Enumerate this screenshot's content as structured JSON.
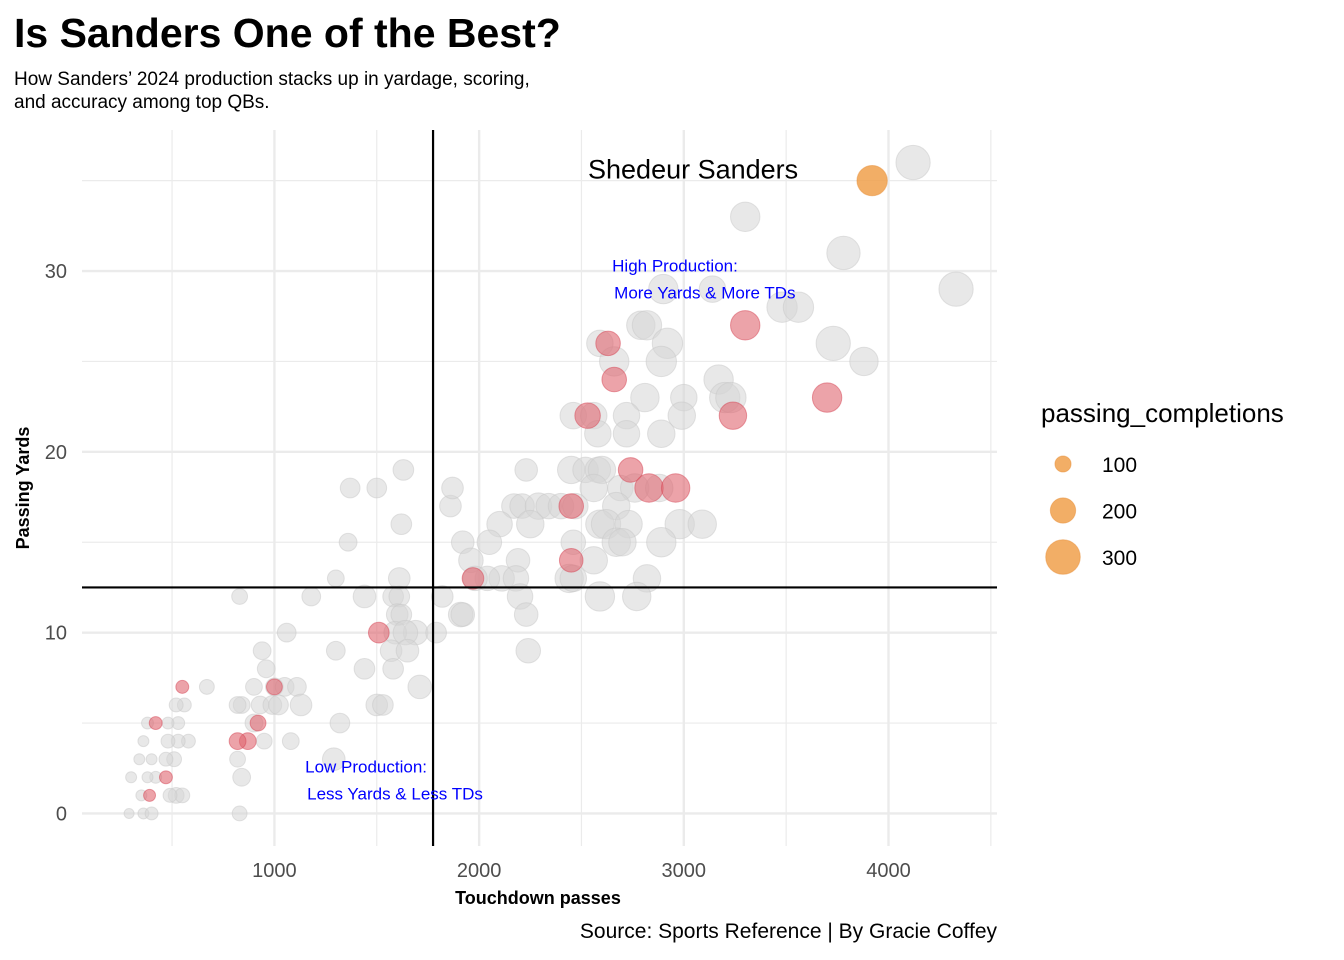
{
  "title": "Is Sanders One of the Best?",
  "subtitle": "How Sanders’ 2024 production stacks up in yardage, scoring, and accuracy among top QBs.",
  "caption": "Source: Sports Reference | By Gracie Coffey",
  "colors": {
    "other": "#d6d6d6",
    "highlight": "#e06670",
    "sanders": "#f0a04b",
    "grid": "#ebebeb",
    "quad_text": "#0000ff"
  },
  "chart_data": {
    "type": "scatter",
    "xlabel": "Touchdown passes",
    "ylabel": "Passing Yards",
    "xlim": [
      60,
      4530
    ],
    "ylim": [
      -1.8,
      37.8
    ],
    "x_ticks": [
      1000,
      2000,
      3000,
      4000
    ],
    "y_ticks": [
      0,
      10,
      20,
      30
    ],
    "grid": true,
    "vline_x": 1775,
    "hline_y": 12.5,
    "legend": {
      "title": "passing_completions",
      "placement": "right",
      "entries": [
        100,
        200,
        300
      ]
    },
    "quadrant_labels": [
      {
        "line1": "High Production:",
        "line2": "More Yards & More TDs",
        "x": 2650,
        "y": 30.3
      },
      {
        "line1": "Low Production:",
        "line2": "Less Yards & Less TDs",
        "x": 1150,
        "y": 2.6
      }
    ],
    "annotation": {
      "text": "Shedeur Sanders",
      "x": 2620,
      "y": 35.5
    },
    "series": [
      {
        "group": "other",
        "points": [
          [
            4120,
            36,
            300
          ],
          [
            3300,
            33,
            250
          ],
          [
            3780,
            31,
            290
          ],
          [
            4330,
            29,
            300
          ],
          [
            2900,
            29,
            250
          ],
          [
            3140,
            29,
            220
          ],
          [
            3480,
            28,
            260
          ],
          [
            3560,
            28,
            260
          ],
          [
            2790,
            27,
            240
          ],
          [
            2820,
            27,
            250
          ],
          [
            2590,
            26,
            220
          ],
          [
            2920,
            26,
            260
          ],
          [
            3730,
            26,
            300
          ],
          [
            2660,
            25,
            250
          ],
          [
            2890,
            25,
            260
          ],
          [
            3880,
            25,
            240
          ],
          [
            3170,
            24,
            250
          ],
          [
            3200,
            23,
            260
          ],
          [
            3230,
            23,
            260
          ],
          [
            2810,
            23,
            240
          ],
          [
            3000,
            23,
            220
          ],
          [
            2460,
            22,
            220
          ],
          [
            2560,
            22,
            220
          ],
          [
            2720,
            22,
            220
          ],
          [
            2990,
            22,
            230
          ],
          [
            2580,
            21,
            220
          ],
          [
            2720,
            21,
            220
          ],
          [
            2890,
            21,
            230
          ],
          [
            2450,
            19,
            230
          ],
          [
            2520,
            19,
            210
          ],
          [
            2580,
            19,
            210
          ],
          [
            2600,
            19,
            230
          ],
          [
            2230,
            19,
            180
          ],
          [
            2560,
            18,
            230
          ],
          [
            2690,
            18,
            210
          ],
          [
            2760,
            18,
            240
          ],
          [
            2880,
            18,
            230
          ],
          [
            2170,
            17,
            200
          ],
          [
            2210,
            17,
            200
          ],
          [
            2290,
            17,
            220
          ],
          [
            2340,
            17,
            210
          ],
          [
            2400,
            17,
            210
          ],
          [
            2470,
            17,
            210
          ],
          [
            2670,
            17,
            230
          ],
          [
            2590,
            16,
            240
          ],
          [
            2620,
            16,
            250
          ],
          [
            2730,
            16,
            230
          ],
          [
            2980,
            16,
            250
          ],
          [
            3090,
            16,
            240
          ],
          [
            2100,
            16,
            210
          ],
          [
            2250,
            16,
            230
          ],
          [
            2460,
            15,
            200
          ],
          [
            2670,
            15,
            240
          ],
          [
            2700,
            15,
            230
          ],
          [
            2890,
            15,
            250
          ],
          [
            1920,
            15,
            180
          ],
          [
            2050,
            15,
            200
          ],
          [
            1960,
            14,
            200
          ],
          [
            2190,
            14,
            190
          ],
          [
            2560,
            14,
            230
          ],
          [
            2440,
            13,
            240
          ],
          [
            2460,
            13,
            220
          ],
          [
            2820,
            13,
            230
          ],
          [
            2110,
            13,
            210
          ],
          [
            2180,
            13,
            210
          ],
          [
            2040,
            13,
            200
          ],
          [
            2200,
            12,
            210
          ],
          [
            2590,
            12,
            250
          ],
          [
            2770,
            12,
            240
          ],
          [
            2230,
            11,
            190
          ],
          [
            2240,
            9,
            200
          ],
          [
            1910,
            11,
            200
          ],
          [
            1920,
            11,
            190
          ],
          [
            1980,
            13,
            200
          ],
          [
            1820,
            12,
            170
          ],
          [
            1860,
            17,
            170
          ],
          [
            1870,
            18,
            170
          ],
          [
            1630,
            19,
            160
          ],
          [
            1500,
            18,
            150
          ],
          [
            1370,
            18,
            150
          ],
          [
            1620,
            16,
            160
          ],
          [
            1610,
            13,
            170
          ],
          [
            1360,
            15,
            130
          ],
          [
            1300,
            13,
            120
          ],
          [
            1440,
            12,
            180
          ],
          [
            1580,
            12,
            160
          ],
          [
            1610,
            12,
            160
          ],
          [
            1600,
            11,
            170
          ],
          [
            1620,
            11,
            160
          ],
          [
            1180,
            12,
            140
          ],
          [
            1690,
            10,
            200
          ],
          [
            1590,
            10,
            180
          ],
          [
            1640,
            10,
            200
          ],
          [
            1570,
            9,
            170
          ],
          [
            1650,
            9,
            180
          ],
          [
            1790,
            10,
            160
          ],
          [
            1710,
            7,
            190
          ],
          [
            1440,
            8,
            160
          ],
          [
            1300,
            9,
            140
          ],
          [
            1580,
            8,
            160
          ],
          [
            1500,
            6,
            170
          ],
          [
            1530,
            6,
            160
          ],
          [
            1060,
            10,
            140
          ],
          [
            940,
            9,
            130
          ],
          [
            960,
            8,
            130
          ],
          [
            900,
            7,
            120
          ],
          [
            1000,
            7,
            130
          ],
          [
            1050,
            7,
            140
          ],
          [
            1110,
            7,
            140
          ],
          [
            930,
            6,
            130
          ],
          [
            990,
            6,
            140
          ],
          [
            1020,
            6,
            150
          ],
          [
            1130,
            6,
            170
          ],
          [
            840,
            6,
            120
          ],
          [
            820,
            6,
            120
          ],
          [
            1320,
            5,
            150
          ],
          [
            900,
            5,
            130
          ],
          [
            1080,
            4,
            120
          ],
          [
            950,
            4,
            110
          ],
          [
            1290,
            3,
            180
          ],
          [
            820,
            3,
            110
          ],
          [
            840,
            2,
            130
          ],
          [
            830,
            0,
            100
          ],
          [
            830,
            12,
            110
          ],
          [
            670,
            7,
            100
          ],
          [
            560,
            6,
            90
          ],
          [
            520,
            6,
            90
          ],
          [
            580,
            4,
            90
          ],
          [
            530,
            4,
            90
          ],
          [
            480,
            4,
            90
          ],
          [
            510,
            3,
            100
          ],
          [
            470,
            3,
            90
          ],
          [
            520,
            1,
            110
          ],
          [
            550,
            1,
            100
          ],
          [
            490,
            1,
            90
          ],
          [
            530,
            5,
            80
          ],
          [
            480,
            5,
            70
          ],
          [
            380,
            5,
            70
          ],
          [
            360,
            4,
            60
          ],
          [
            340,
            3,
            60
          ],
          [
            400,
            3,
            60
          ],
          [
            420,
            2,
            70
          ],
          [
            300,
            2,
            60
          ],
          [
            380,
            2,
            60
          ],
          [
            350,
            1,
            60
          ],
          [
            360,
            0,
            60
          ],
          [
            400,
            0,
            80
          ],
          [
            290,
            0,
            50
          ]
        ]
      },
      {
        "group": "highlight",
        "points": [
          [
            3300,
            27,
            250
          ],
          [
            2630,
            26,
            200
          ],
          [
            2660,
            24,
            200
          ],
          [
            3700,
            23,
            250
          ],
          [
            2530,
            22,
            210
          ],
          [
            3240,
            22,
            230
          ],
          [
            2740,
            19,
            200
          ],
          [
            2830,
            18,
            240
          ],
          [
            2960,
            18,
            240
          ],
          [
            2450,
            17,
            200
          ],
          [
            2450,
            14,
            190
          ],
          [
            1970,
            13,
            170
          ],
          [
            1510,
            10,
            160
          ],
          [
            1000,
            7,
            110
          ],
          [
            550,
            7,
            80
          ],
          [
            920,
            5,
            110
          ],
          [
            870,
            4,
            120
          ],
          [
            820,
            4,
            120
          ],
          [
            420,
            5,
            80
          ],
          [
            470,
            2,
            80
          ],
          [
            390,
            1,
            70
          ]
        ]
      },
      {
        "group": "sanders",
        "points": [
          [
            3920,
            35,
            260
          ]
        ]
      }
    ]
  }
}
